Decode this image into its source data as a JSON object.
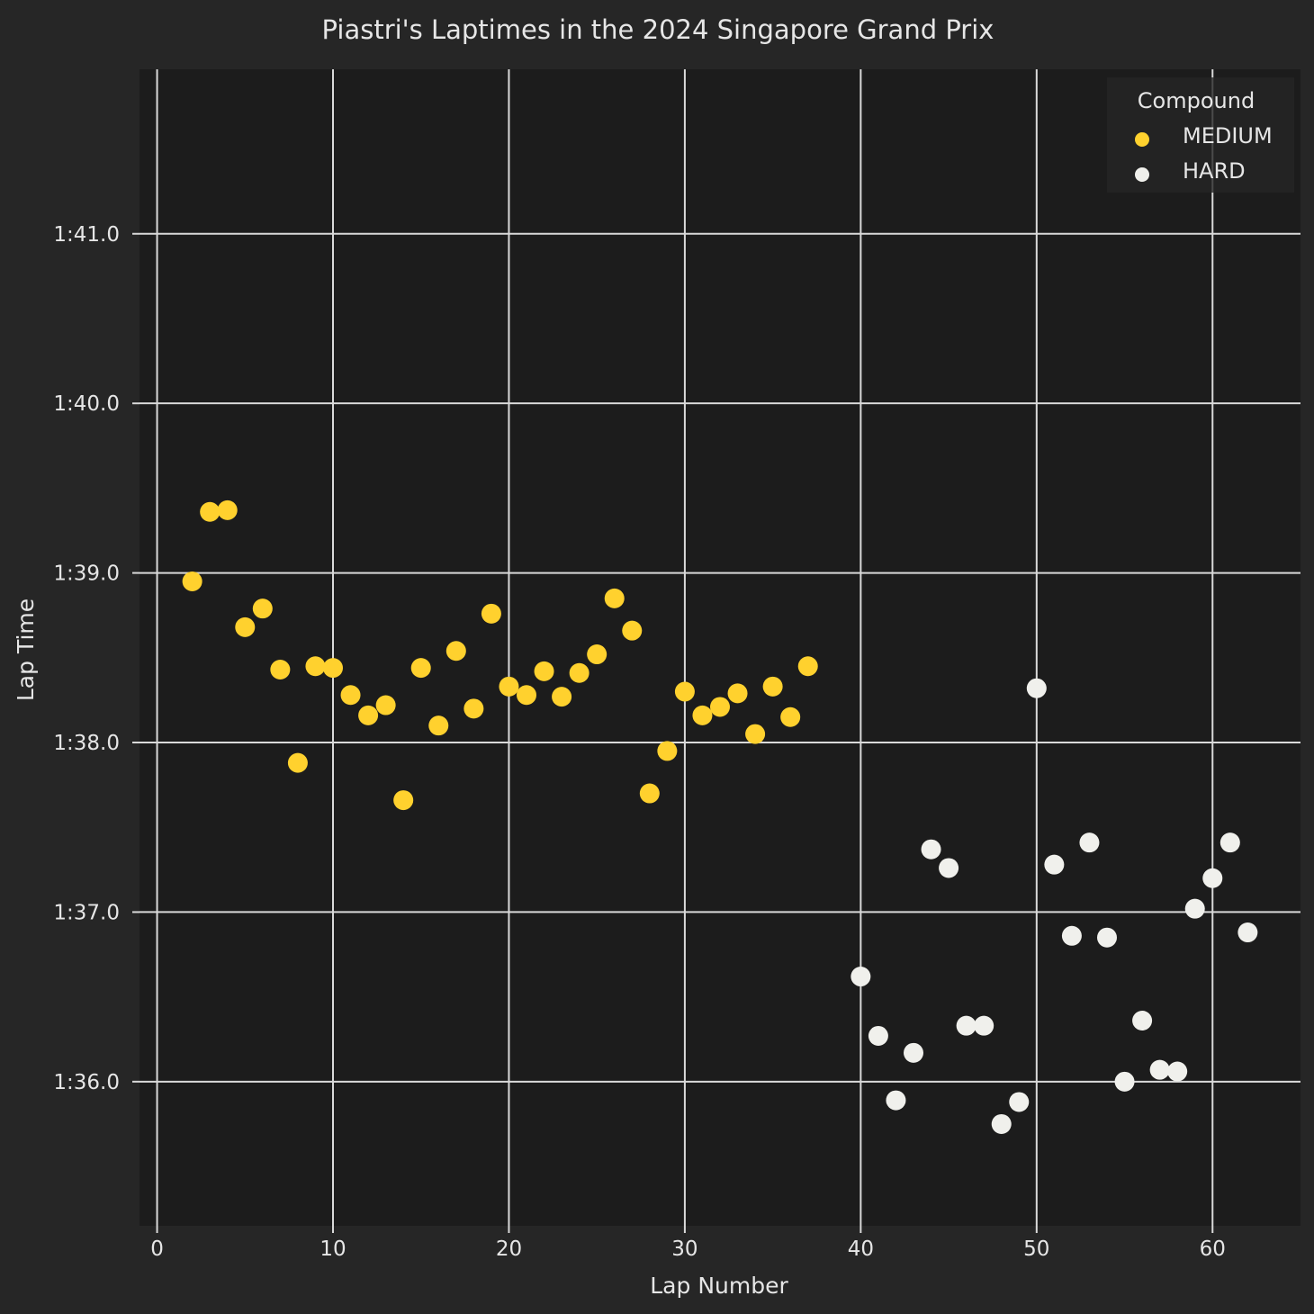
{
  "chart_data": {
    "type": "scatter",
    "title": "Piastri's Laptimes in the 2024 Singapore Grand Prix",
    "xlabel": "Lap Number",
    "ylabel": "Lap Time",
    "xlim": [
      -1,
      65
    ],
    "ylim": [
      95.15,
      101.97
    ],
    "x_ticks": [
      0,
      10,
      20,
      30,
      40,
      50,
      60
    ],
    "y_ticks": [
      96,
      97,
      98,
      99,
      100,
      101
    ],
    "y_tick_labels": [
      "1:36.0",
      "1:37.0",
      "1:38.0",
      "1:39.0",
      "1:40.0",
      "1:41.0"
    ],
    "grid": true,
    "legend": {
      "title": "Compound",
      "placement": "top-right",
      "entries": [
        "MEDIUM",
        "HARD"
      ]
    },
    "colors": {
      "figure_background": "#262626",
      "axes_background": "#1c1c1c",
      "grid": "#d9d9d9",
      "MEDIUM": "#ffd12e",
      "HARD": "#f0f0ec"
    },
    "series": [
      {
        "name": "MEDIUM",
        "points": [
          [
            2,
            98.95
          ],
          [
            3,
            99.36
          ],
          [
            4,
            99.37
          ],
          [
            5,
            98.68
          ],
          [
            6,
            98.79
          ],
          [
            7,
            98.43
          ],
          [
            8,
            97.88
          ],
          [
            9,
            98.45
          ],
          [
            10,
            98.44
          ],
          [
            11,
            98.28
          ],
          [
            12,
            98.16
          ],
          [
            13,
            98.22
          ],
          [
            14,
            97.66
          ],
          [
            15,
            98.44
          ],
          [
            16,
            98.1
          ],
          [
            17,
            98.54
          ],
          [
            18,
            98.2
          ],
          [
            19,
            98.76
          ],
          [
            20,
            98.33
          ],
          [
            21,
            98.28
          ],
          [
            22,
            98.42
          ],
          [
            23,
            98.27
          ],
          [
            24,
            98.41
          ],
          [
            25,
            98.52
          ],
          [
            26,
            98.85
          ],
          [
            27,
            98.66
          ],
          [
            28,
            97.7
          ],
          [
            29,
            97.95
          ],
          [
            30,
            98.3
          ],
          [
            31,
            98.16
          ],
          [
            32,
            98.21
          ],
          [
            33,
            98.29
          ],
          [
            34,
            98.05
          ],
          [
            35,
            98.33
          ],
          [
            36,
            98.15
          ],
          [
            37,
            98.45
          ]
        ]
      },
      {
        "name": "HARD",
        "points": [
          [
            40,
            96.62
          ],
          [
            41,
            96.27
          ],
          [
            42,
            95.89
          ],
          [
            43,
            96.17
          ],
          [
            44,
            97.37
          ],
          [
            45,
            97.26
          ],
          [
            46,
            96.33
          ],
          [
            47,
            96.33
          ],
          [
            48,
            95.75
          ],
          [
            49,
            95.88
          ],
          [
            50,
            98.32
          ],
          [
            51,
            97.28
          ],
          [
            52,
            96.86
          ],
          [
            53,
            97.41
          ],
          [
            54,
            96.85
          ],
          [
            55,
            96.0
          ],
          [
            56,
            96.36
          ],
          [
            57,
            96.07
          ],
          [
            58,
            96.06
          ],
          [
            59,
            97.02
          ],
          [
            60,
            97.2
          ],
          [
            61,
            97.41
          ],
          [
            62,
            96.88
          ]
        ]
      }
    ]
  }
}
